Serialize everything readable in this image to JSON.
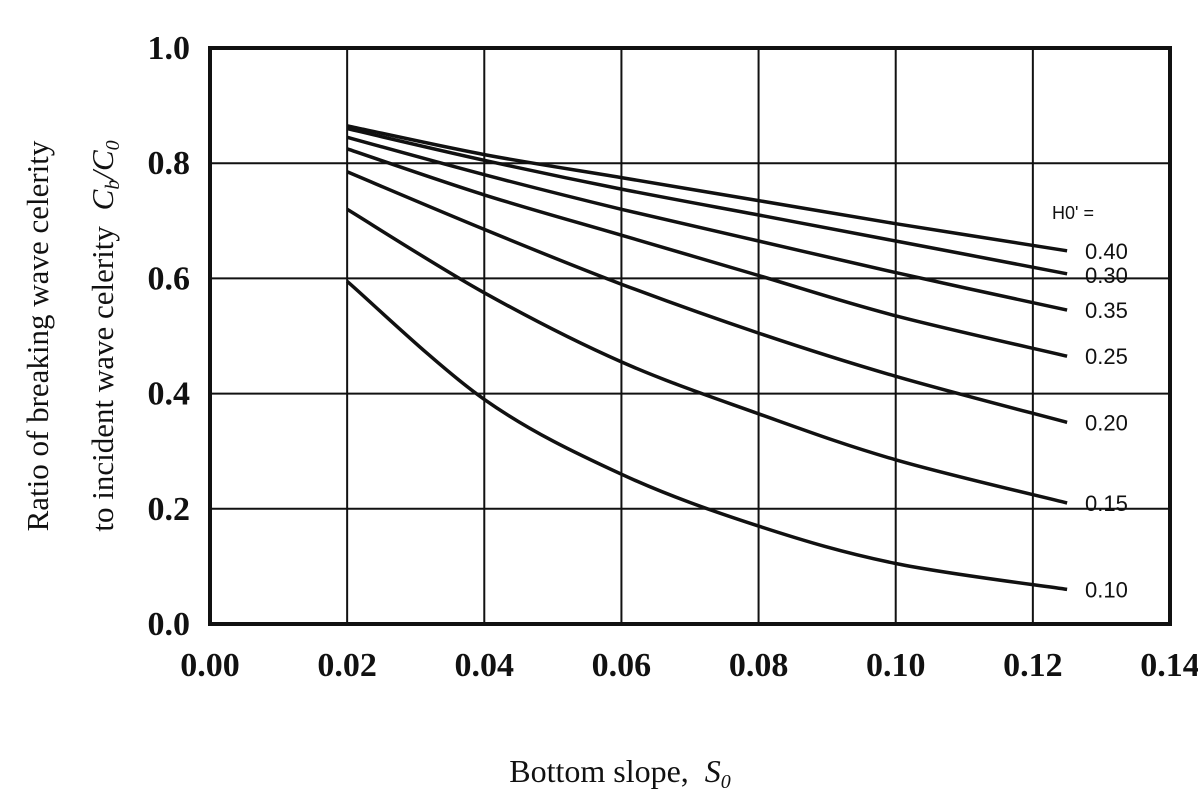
{
  "chart_data": {
    "type": "line",
    "title": "",
    "ylabel_line1": "Ratio of breaking wave celerity",
    "ylabel_line2": "to incident wave celerity",
    "ylabel_math": "C_b/C_0",
    "xlabel": "Bottom slope,",
    "xlabel_math": "S_0",
    "legend_title": "H0' =",
    "xlim": [
      0.0,
      0.14
    ],
    "ylim": [
      0.0,
      1.0
    ],
    "xticks": [
      "0.00",
      "0.02",
      "0.04",
      "0.06",
      "0.08",
      "0.10",
      "0.12",
      "0.14"
    ],
    "yticks": [
      "0.0",
      "0.2",
      "0.4",
      "0.6",
      "0.8",
      "1.0"
    ],
    "grid": true,
    "series": [
      {
        "name": "0.40",
        "x": [
          0.02,
          0.04,
          0.06,
          0.08,
          0.1,
          0.125
        ],
        "y": [
          0.865,
          0.815,
          0.775,
          0.735,
          0.695,
          0.648
        ]
      },
      {
        "name": "0.30",
        "x": [
          0.02,
          0.04,
          0.06,
          0.08,
          0.1,
          0.125
        ],
        "y": [
          0.86,
          0.805,
          0.755,
          0.71,
          0.665,
          0.608
        ]
      },
      {
        "name": "0.35",
        "x": [
          0.02,
          0.04,
          0.06,
          0.08,
          0.1,
          0.125
        ],
        "y": [
          0.845,
          0.78,
          0.72,
          0.665,
          0.61,
          0.545
        ]
      },
      {
        "name": "0.25",
        "x": [
          0.02,
          0.04,
          0.06,
          0.08,
          0.1,
          0.125
        ],
        "y": [
          0.825,
          0.745,
          0.675,
          0.605,
          0.535,
          0.465
        ]
      },
      {
        "name": "0.20",
        "x": [
          0.02,
          0.04,
          0.06,
          0.08,
          0.1,
          0.125
        ],
        "y": [
          0.785,
          0.685,
          0.59,
          0.505,
          0.43,
          0.35
        ]
      },
      {
        "name": "0.15",
        "x": [
          0.02,
          0.04,
          0.06,
          0.08,
          0.1,
          0.125
        ],
        "y": [
          0.72,
          0.575,
          0.455,
          0.365,
          0.285,
          0.21
        ]
      },
      {
        "name": "0.10",
        "x": [
          0.02,
          0.04,
          0.06,
          0.08,
          0.1,
          0.125
        ],
        "y": [
          0.595,
          0.39,
          0.26,
          0.17,
          0.105,
          0.06
        ]
      }
    ]
  }
}
